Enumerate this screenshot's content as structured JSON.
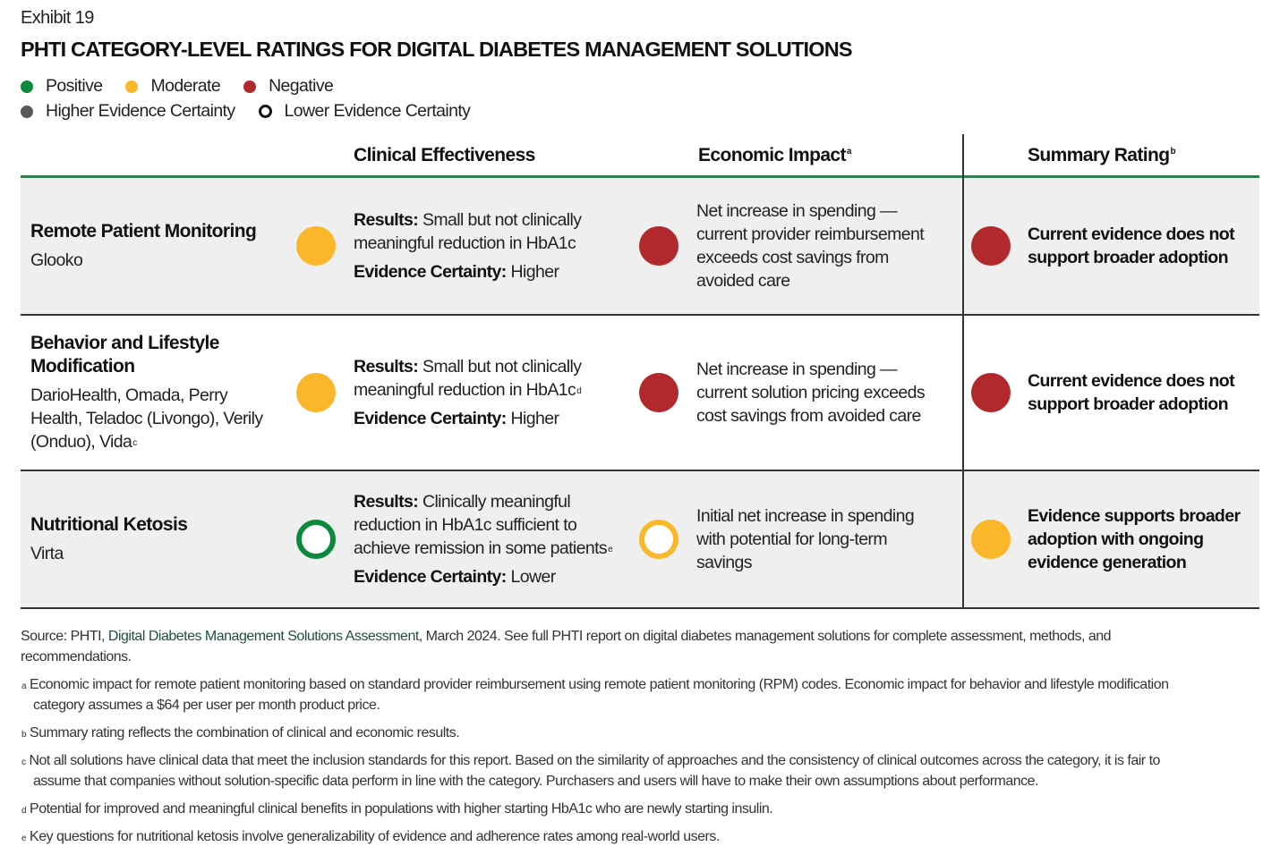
{
  "exhibit": "Exhibit 19",
  "title": "PHTI CATEGORY-LEVEL RATINGS FOR DIGITAL DIABETES MANAGEMENT SOLUTIONS",
  "colors": {
    "positive": "#0b8a3e",
    "moderate": "#fbb72a",
    "negative": "#b1292c",
    "certainty": "#58595b",
    "header_rule": "#2e7d4f"
  },
  "legend": {
    "positive": "Positive",
    "moderate": "Moderate",
    "negative": "Negative",
    "higher": "Higher Evidence Certainty",
    "lower": "Lower Evidence Certainty"
  },
  "headers": {
    "clinical": "Clinical Effectiveness",
    "economic": "Economic Impact",
    "economic_sup": "a",
    "summary": "Summary Rating",
    "summary_sup": "b"
  },
  "rows": [
    {
      "category": "Remote Patient Monitoring",
      "solutions": "Glooko",
      "solutions_sup": "",
      "clinical": {
        "rating": "moderate",
        "certainty": "higher",
        "results_label": "Results:",
        "results": "Small but not clinically meaningful reduction in HbA1c",
        "results_sup": "",
        "certainty_label": "Evidence Certainty:",
        "certainty_value": "Higher"
      },
      "economic": {
        "rating": "negative",
        "certainty": "higher",
        "text": "Net increase in spending — current provider reimbursement exceeds cost savings from avoided care"
      },
      "summary": {
        "rating": "negative",
        "certainty": "higher",
        "text": "Current evidence does not support broader adoption"
      }
    },
    {
      "category": "Behavior and Lifestyle Modification",
      "solutions": "DarioHealth, Omada, Perry Health, Teladoc (Livongo), Verily (Onduo), Vida",
      "solutions_sup": "c",
      "clinical": {
        "rating": "moderate",
        "certainty": "higher",
        "results_label": "Results:",
        "results": "Small but not clinically meaningful reduction in HbA1c",
        "results_sup": "d",
        "certainty_label": "Evidence Certainty:",
        "certainty_value": "Higher"
      },
      "economic": {
        "rating": "negative",
        "certainty": "higher",
        "text": "Net increase in spending — current solution pricing exceeds cost savings from avoided care"
      },
      "summary": {
        "rating": "negative",
        "certainty": "higher",
        "text": "Current evidence does not support broader adoption"
      }
    },
    {
      "category": "Nutritional Ketosis",
      "solutions": "Virta",
      "solutions_sup": "",
      "clinical": {
        "rating": "positive",
        "certainty": "lower",
        "results_label": "Results:",
        "results": "Clinically meaningful reduction in HbA1c sufficient to achieve remission in some patients",
        "results_sup": "e",
        "certainty_label": "Evidence Certainty:",
        "certainty_value": "Lower"
      },
      "economic": {
        "rating": "moderate",
        "certainty": "lower",
        "text": "Initial net increase in spending with potential for long-term savings"
      },
      "summary": {
        "rating": "moderate",
        "certainty": "higher",
        "text": "Evidence supports broader adoption with ongoing evidence generation"
      }
    }
  ],
  "footnotes": {
    "source_prefix": "Source: PHTI, ",
    "source_link": "Digital Diabetes Management Solutions Assessment",
    "source_suffix": ", March 2024. See full PHTI report on digital diabetes management solutions for complete assessment, methods, and recommendations.",
    "notes": [
      {
        "mark": "a",
        "text": "Economic impact for remote patient monitoring based on standard provider reimbursement using remote patient monitoring (RPM) codes. Economic impact for behavior and lifestyle modification category assumes a $64 per user per month product price."
      },
      {
        "mark": "b",
        "text": "Summary rating reflects the combination of clinical and economic results."
      },
      {
        "mark": "c",
        "text": "Not all solutions have clinical data that meet the inclusion standards for this report. Based on the similarity of approaches and the consistency of clinical outcomes across the category, it is fair to assume that companies without solution-specific data perform in line with the category. Purchasers and users will have to make their own assumptions about performance."
      },
      {
        "mark": "d",
        "text": "Potential for improved and meaningful clinical benefits in populations with higher starting HbA1c who are newly starting insulin."
      },
      {
        "mark": "e",
        "text": "Key questions for nutritional ketosis involve generalizability of evidence and adherence rates among real-world users."
      }
    ]
  }
}
